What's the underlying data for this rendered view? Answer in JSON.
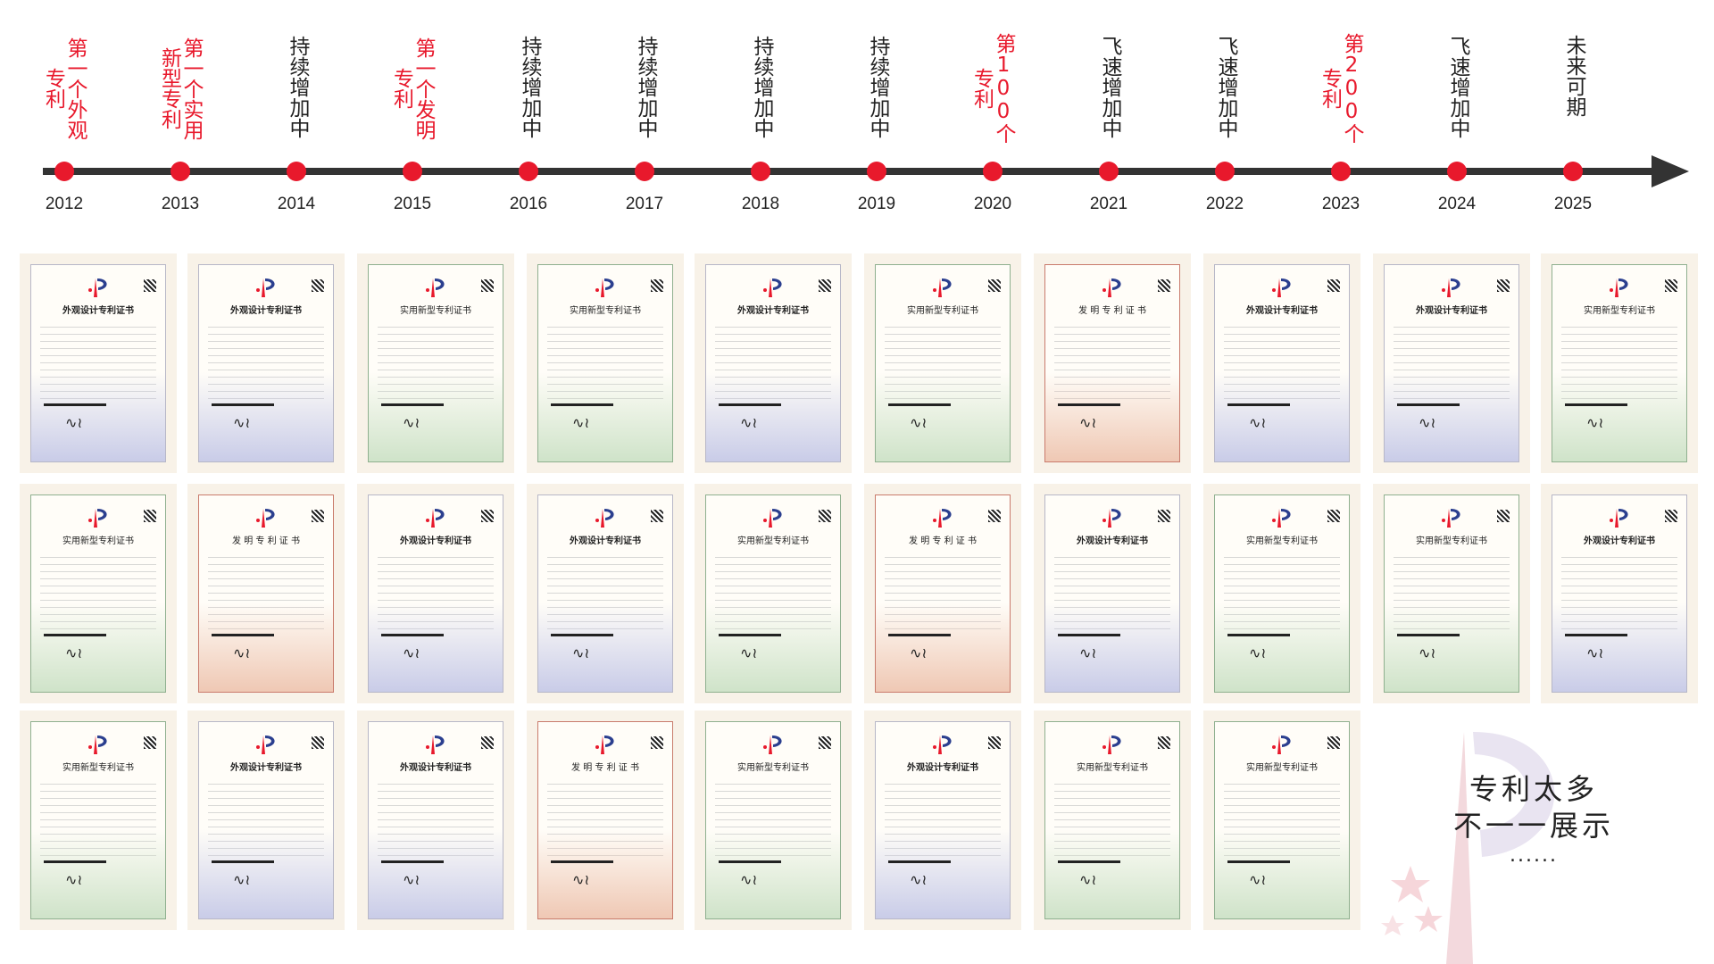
{
  "timeline": [
    {
      "year": "2012",
      "label": "第一个外观专利",
      "highlight": true
    },
    {
      "year": "2013",
      "label": "第一个实用新型专利",
      "highlight": true
    },
    {
      "year": "2014",
      "label": "持续增加中",
      "highlight": false
    },
    {
      "year": "2015",
      "label": "第一个发明专利",
      "highlight": true
    },
    {
      "year": "2016",
      "label": "持续增加中",
      "highlight": false
    },
    {
      "year": "2017",
      "label": "持续增加中",
      "highlight": false
    },
    {
      "year": "2018",
      "label": "持续增加中",
      "highlight": false
    },
    {
      "year": "2019",
      "label": "持续增加中",
      "highlight": false
    },
    {
      "year": "2020",
      "label": "第100个专利",
      "highlight": true
    },
    {
      "year": "2021",
      "label": "飞速增加中",
      "highlight": false
    },
    {
      "year": "2022",
      "label": "飞速增加中",
      "highlight": false
    },
    {
      "year": "2023",
      "label": "第200个专利",
      "highlight": true
    },
    {
      "year": "2024",
      "label": "飞速增加中",
      "highlight": false
    },
    {
      "year": "2025",
      "label": "未来可期",
      "highlight": false
    }
  ],
  "certificates": [
    {
      "title": "外观设计专利证书",
      "color": "blue"
    },
    {
      "title": "外观设计专利证书",
      "color": "blue"
    },
    {
      "title": "实用新型专利证书",
      "color": "green"
    },
    {
      "title": "实用新型专利证书",
      "color": "green"
    },
    {
      "title": "外观设计专利证书",
      "color": "blue"
    },
    {
      "title": "实用新型专利证书",
      "color": "green"
    },
    {
      "title": "发 明 专 利 证 书",
      "color": "red"
    },
    {
      "title": "外观设计专利证书",
      "color": "blue"
    },
    {
      "title": "外观设计专利证书",
      "color": "blue"
    },
    {
      "title": "实用新型专利证书",
      "color": "green"
    },
    {
      "title": "实用新型专利证书",
      "color": "green"
    },
    {
      "title": "发 明 专 利 证 书",
      "color": "red"
    },
    {
      "title": "外观设计专利证书",
      "color": "blue"
    },
    {
      "title": "外观设计专利证书",
      "color": "blue"
    },
    {
      "title": "实用新型专利证书",
      "color": "green"
    },
    {
      "title": "发 明 专 利 证 书",
      "color": "red"
    },
    {
      "title": "外观设计专利证书",
      "color": "blue"
    },
    {
      "title": "实用新型专利证书",
      "color": "green"
    },
    {
      "title": "实用新型专利证书",
      "color": "green"
    },
    {
      "title": "外观设计专利证书",
      "color": "blue"
    },
    {
      "title": "实用新型专利证书",
      "color": "green"
    },
    {
      "title": "外观设计专利证书",
      "color": "blue"
    },
    {
      "title": "外观设计专利证书",
      "color": "blue"
    },
    {
      "title": "发 明 专 利 证 书",
      "color": "red"
    },
    {
      "title": "实用新型专利证书",
      "color": "green"
    },
    {
      "title": "外观设计专利证书",
      "color": "blue"
    },
    {
      "title": "实用新型专利证书",
      "color": "green"
    },
    {
      "title": "实用新型专利证书",
      "color": "green"
    }
  ],
  "note": {
    "line1": "专利太多",
    "line2": "不一一展示",
    "dots": "......"
  },
  "colors": {
    "accent": "#e8192c",
    "axis": "#333333",
    "text": "#222222"
  }
}
